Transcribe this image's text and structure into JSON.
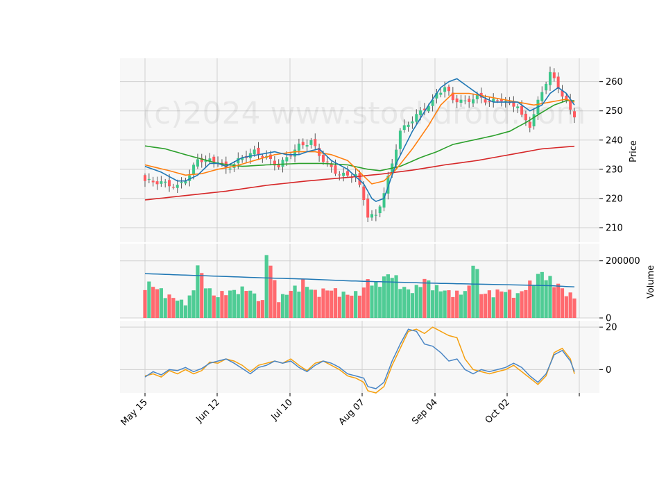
{
  "chart_data": {
    "type": "candlestick",
    "watermark": "(c)2024 www.stockdroid.com",
    "x_tick_labels": [
      "May 15",
      "Jun 12",
      "Jul 10",
      "Aug 07",
      "Sep 04",
      "Oct 02"
    ],
    "price_panel": {
      "ylabel": "Price",
      "ylim": [
        205,
        268
      ],
      "yticks": [
        210,
        220,
        230,
        240,
        250,
        260
      ],
      "ytick_labels": [
        "210",
        "220",
        "230",
        "240",
        "250",
        "260"
      ],
      "colors": {
        "up": "#3cc68a",
        "down": "#ff5a5f",
        "ma_fast": "#1f77b4",
        "ma_mid": "#ff7f0e",
        "ma_slow": "#2ca02c",
        "ma_long": "#d62728"
      }
    },
    "volume_panel": {
      "ylabel": "Volume",
      "ylim": [
        0,
        260000
      ],
      "yticks": [
        0,
        200000
      ],
      "ytick_labels": [
        "0",
        "200000"
      ],
      "ma_color": "#1f77b4"
    },
    "oscillator_panel": {
      "ylim": [
        -11,
        23
      ],
      "yticks": [
        0,
        20
      ],
      "ytick_labels": [
        "0",
        "20"
      ],
      "colors": {
        "line_a": "#4a86c5",
        "line_b": "#f5a00f"
      }
    }
  }
}
